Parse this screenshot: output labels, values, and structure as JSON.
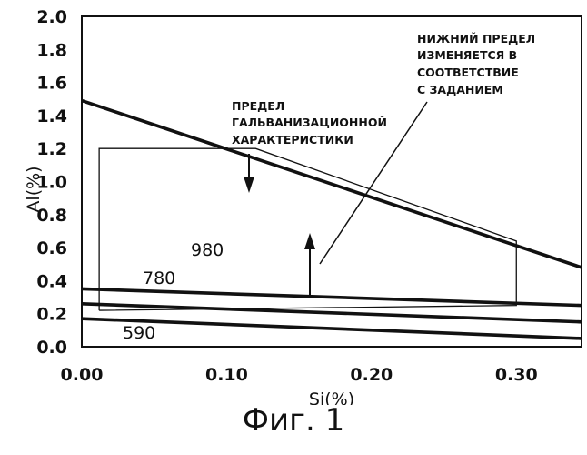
{
  "figure": {
    "caption": "Фиг. 1"
  },
  "chart_data": {
    "type": "line",
    "xlabel": "Si(%)",
    "ylabel": "Al(%)",
    "xlim": [
      0,
      0.345
    ],
    "ylim": [
      0,
      2.0
    ],
    "x_ticks": [
      "0.00",
      "0.10",
      "0.20",
      "0.30"
    ],
    "x_tick_values": [
      0,
      0.1,
      0.2,
      0.3
    ],
    "y_ticks": [
      "0.0",
      "0.2",
      "0.4",
      "0.6",
      "0.8",
      "1.0",
      "1.2",
      "1.4",
      "1.6",
      "1.8",
      "2.0"
    ],
    "y_tick_values": [
      0,
      0.2,
      0.4,
      0.6,
      0.8,
      1.0,
      1.2,
      1.4,
      1.6,
      1.8,
      2.0
    ],
    "grid": false,
    "series": [
      {
        "x": [
          0,
          0.345
        ],
        "y": [
          1.49,
          0.48
        ]
      },
      {
        "name": "980",
        "x": [
          0,
          0.345
        ],
        "y": [
          0.35,
          0.25
        ]
      },
      {
        "name": "780",
        "x": [
          0,
          0.345
        ],
        "y": [
          0.26,
          0.15
        ]
      },
      {
        "name": "590",
        "x": [
          0,
          0.345
        ],
        "y": [
          0.17,
          0.05
        ]
      }
    ],
    "region_outline": {
      "x": [
        0.012,
        0.012,
        0.12,
        0.3,
        0.3,
        0.012
      ],
      "y": [
        0.22,
        1.2,
        1.2,
        0.64,
        0.25,
        0.22
      ]
    },
    "annotations": [
      {
        "id": "galv",
        "text": [
          "ПРЕДЕЛ",
          "ГАЛЬВАНИЗАЦИОННОЙ",
          "ХАРАКТЕРИСТИКИ"
        ]
      },
      {
        "id": "lower",
        "text": [
          "НИЖНИЙ ПРЕДЕЛ",
          "ИЗМЕНЯЕТСЯ В",
          "СООТВЕТСТВИЕ",
          "С ЗАДАНИЕМ"
        ]
      }
    ],
    "curve_labels": [
      "980",
      "780",
      "590"
    ]
  }
}
